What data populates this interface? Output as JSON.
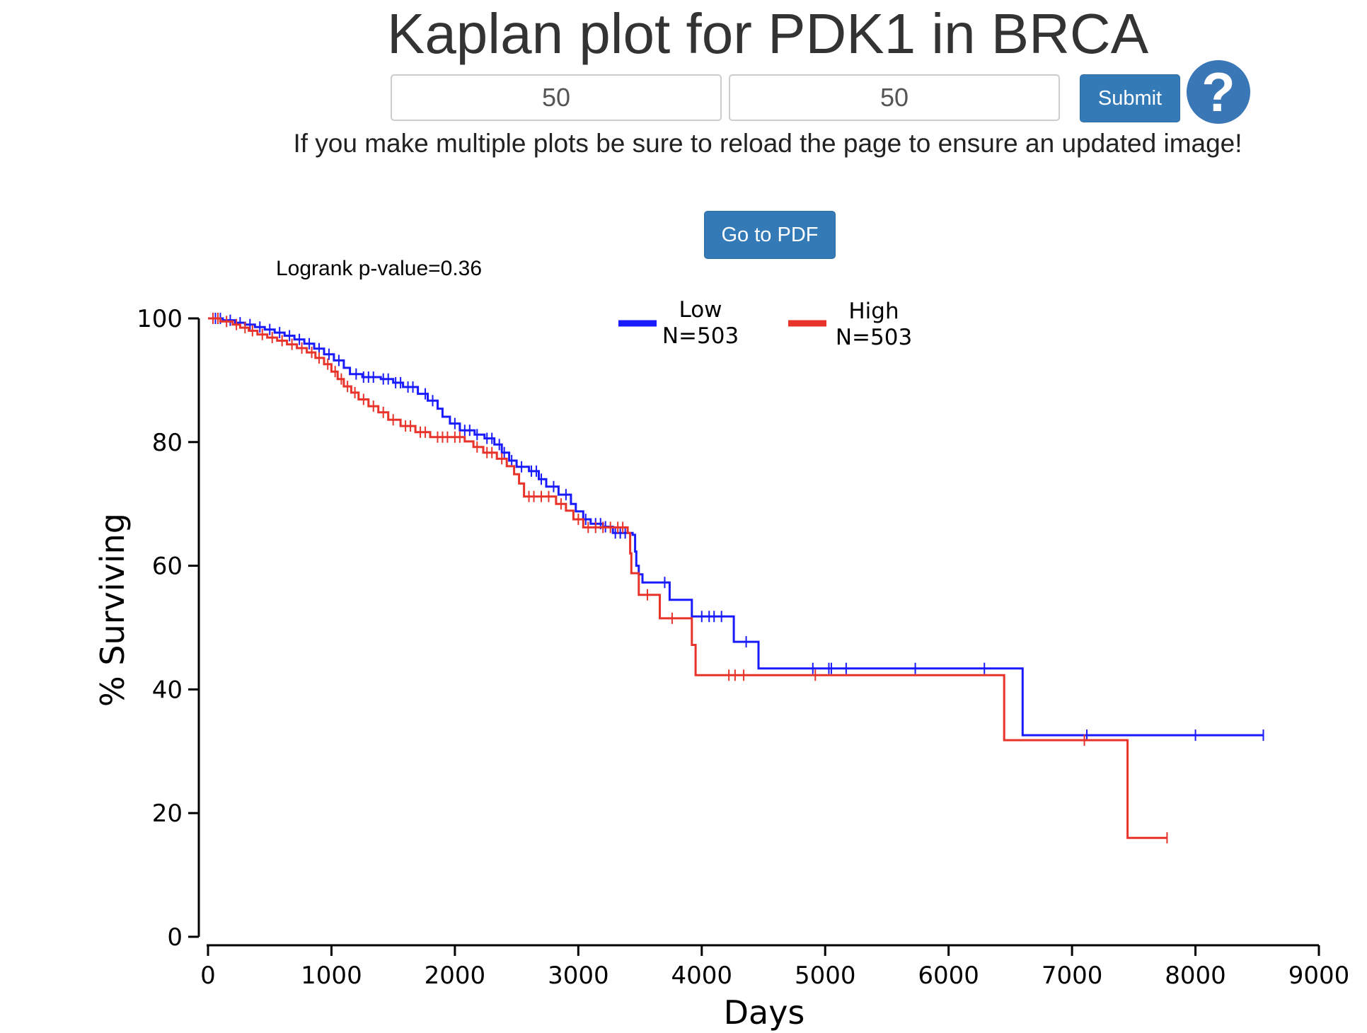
{
  "page": {
    "title": "Kaplan plot for PDK1 in BRCA",
    "inputs": [
      {
        "value": "50"
      },
      {
        "value": "50"
      }
    ],
    "submit_label": "Submit",
    "help_icon": "question-circle-icon",
    "help_glyph": "?",
    "notice": "If you make multiple plots be sure to reload the page to ensure an updated image!",
    "pdf_button_label": "Go to PDF",
    "accent_color": "#337ab7"
  },
  "chart_data": {
    "type": "line",
    "annotation": "Logrank p-value=0.36",
    "xlabel": "Days",
    "ylabel": "% Surviving",
    "xlim": [
      0,
      9000
    ],
    "ylim": [
      0,
      100
    ],
    "xticks": [
      0,
      1000,
      2000,
      3000,
      4000,
      5000,
      6000,
      7000,
      8000,
      9000
    ],
    "yticks": [
      0,
      20,
      40,
      60,
      80,
      100
    ],
    "grid": false,
    "legend_position": "top-center",
    "series": [
      {
        "name": "Low",
        "n_label": "N=503",
        "color": "#1a1aff",
        "steps": [
          [
            0,
            100
          ],
          [
            120,
            99.7
          ],
          [
            220,
            99.3
          ],
          [
            300,
            99
          ],
          [
            380,
            98.6
          ],
          [
            460,
            98.2
          ],
          [
            540,
            97.7
          ],
          [
            620,
            97.2
          ],
          [
            700,
            96.6
          ],
          [
            780,
            95.9
          ],
          [
            860,
            95.1
          ],
          [
            940,
            94.2
          ],
          [
            1020,
            93.2
          ],
          [
            1100,
            92
          ],
          [
            1150,
            91
          ],
          [
            1250,
            90.5
          ],
          [
            1400,
            90.2
          ],
          [
            1500,
            89.6
          ],
          [
            1580,
            88.9
          ],
          [
            1700,
            87.8
          ],
          [
            1780,
            86.7
          ],
          [
            1860,
            85.4
          ],
          [
            1900,
            84.1
          ],
          [
            1960,
            83
          ],
          [
            2040,
            81.9
          ],
          [
            2160,
            81.2
          ],
          [
            2240,
            80.6
          ],
          [
            2320,
            79.6
          ],
          [
            2380,
            78.3
          ],
          [
            2440,
            77
          ],
          [
            2500,
            76
          ],
          [
            2600,
            75.3
          ],
          [
            2680,
            74
          ],
          [
            2740,
            72.8
          ],
          [
            2840,
            71.5
          ],
          [
            2940,
            70
          ],
          [
            2980,
            68.8
          ],
          [
            3040,
            67.5
          ],
          [
            3100,
            66.8
          ],
          [
            3200,
            66.3
          ],
          [
            3280,
            65.3
          ],
          [
            3440,
            65
          ],
          [
            3460,
            62.3
          ],
          [
            3470,
            60
          ],
          [
            3490,
            58.6
          ],
          [
            3520,
            57.3
          ],
          [
            3740,
            54.5
          ],
          [
            3920,
            51.8
          ],
          [
            4260,
            47.7
          ],
          [
            4460,
            43.4
          ],
          [
            6600,
            32.6
          ],
          [
            8550,
            32.6
          ]
        ],
        "censor_marks": [
          [
            60,
            100
          ],
          [
            100,
            100
          ],
          [
            180,
            99.7
          ],
          [
            260,
            99.3
          ],
          [
            340,
            99
          ],
          [
            420,
            98.6
          ],
          [
            500,
            98.2
          ],
          [
            580,
            97.7
          ],
          [
            660,
            97.2
          ],
          [
            740,
            96.6
          ],
          [
            820,
            95.9
          ],
          [
            900,
            95.1
          ],
          [
            980,
            94.2
          ],
          [
            1060,
            93.2
          ],
          [
            1200,
            91
          ],
          [
            1260,
            90.5
          ],
          [
            1300,
            90.5
          ],
          [
            1340,
            90.5
          ],
          [
            1420,
            90.2
          ],
          [
            1460,
            90.2
          ],
          [
            1520,
            89.6
          ],
          [
            1560,
            89.6
          ],
          [
            1620,
            88.9
          ],
          [
            1660,
            88.9
          ],
          [
            1760,
            87.8
          ],
          [
            1820,
            86.7
          ],
          [
            2000,
            83
          ],
          [
            2080,
            81.9
          ],
          [
            2120,
            81.9
          ],
          [
            2180,
            81.2
          ],
          [
            2260,
            80.6
          ],
          [
            2300,
            80.6
          ],
          [
            2360,
            79.6
          ],
          [
            2400,
            78.3
          ],
          [
            2460,
            77
          ],
          [
            2540,
            76
          ],
          [
            2620,
            75.3
          ],
          [
            2660,
            75.3
          ],
          [
            2700,
            74
          ],
          [
            2800,
            72.8
          ],
          [
            2900,
            71.5
          ],
          [
            3060,
            67.5
          ],
          [
            3140,
            66.8
          ],
          [
            3180,
            66.8
          ],
          [
            3220,
            66.3
          ],
          [
            3300,
            65.3
          ],
          [
            3340,
            65.3
          ],
          [
            3380,
            65.3
          ],
          [
            3700,
            57.3
          ],
          [
            4000,
            51.8
          ],
          [
            4060,
            51.8
          ],
          [
            4100,
            51.8
          ],
          [
            4160,
            51.8
          ],
          [
            4360,
            47.7
          ],
          [
            4900,
            43.4
          ],
          [
            5030,
            43.4
          ],
          [
            5050,
            43.4
          ],
          [
            5170,
            43.4
          ],
          [
            5730,
            43.4
          ],
          [
            6290,
            43.4
          ],
          [
            7120,
            32.6
          ],
          [
            8000,
            32.6
          ],
          [
            8550,
            32.6
          ]
        ]
      },
      {
        "name": "High",
        "n_label": "N=503",
        "color": "#e8332a",
        "steps": [
          [
            0,
            100
          ],
          [
            100,
            99.5
          ],
          [
            200,
            99
          ],
          [
            260,
            98.5
          ],
          [
            330,
            98
          ],
          [
            400,
            97.4
          ],
          [
            480,
            96.9
          ],
          [
            560,
            96.4
          ],
          [
            640,
            95.8
          ],
          [
            720,
            95.2
          ],
          [
            800,
            94.5
          ],
          [
            870,
            93.6
          ],
          [
            940,
            92.6
          ],
          [
            1000,
            91.4
          ],
          [
            1050,
            90.2
          ],
          [
            1100,
            89
          ],
          [
            1160,
            88
          ],
          [
            1220,
            86.9
          ],
          [
            1300,
            85.8
          ],
          [
            1380,
            84.8
          ],
          [
            1460,
            83.6
          ],
          [
            1560,
            82.6
          ],
          [
            1680,
            81.6
          ],
          [
            1800,
            80.8
          ],
          [
            2080,
            80.1
          ],
          [
            2150,
            79.2
          ],
          [
            2230,
            78.3
          ],
          [
            2340,
            77.3
          ],
          [
            2420,
            76.1
          ],
          [
            2480,
            74.8
          ],
          [
            2520,
            73.3
          ],
          [
            2560,
            71.2
          ],
          [
            2820,
            70
          ],
          [
            2900,
            68.9
          ],
          [
            2960,
            67.5
          ],
          [
            3040,
            66.2
          ],
          [
            3400,
            65.3
          ],
          [
            3420,
            62
          ],
          [
            3430,
            58.8
          ],
          [
            3490,
            55.3
          ],
          [
            3660,
            51.5
          ],
          [
            3920,
            47.2
          ],
          [
            3950,
            42.3
          ],
          [
            6450,
            31.8
          ],
          [
            7450,
            16
          ],
          [
            7770,
            16
          ]
        ],
        "censor_marks": [
          [
            40,
            100
          ],
          [
            80,
            100
          ],
          [
            150,
            99.5
          ],
          [
            230,
            99
          ],
          [
            300,
            98.5
          ],
          [
            360,
            98
          ],
          [
            440,
            97.4
          ],
          [
            520,
            96.9
          ],
          [
            600,
            96.4
          ],
          [
            680,
            95.8
          ],
          [
            760,
            95.2
          ],
          [
            840,
            94.5
          ],
          [
            900,
            93.6
          ],
          [
            970,
            92.6
          ],
          [
            1030,
            91.4
          ],
          [
            1080,
            90.2
          ],
          [
            1130,
            89
          ],
          [
            1190,
            88
          ],
          [
            1260,
            86.9
          ],
          [
            1340,
            85.8
          ],
          [
            1420,
            84.8
          ],
          [
            1500,
            83.6
          ],
          [
            1600,
            82.6
          ],
          [
            1640,
            82.6
          ],
          [
            1720,
            81.6
          ],
          [
            1760,
            81.6
          ],
          [
            1860,
            80.8
          ],
          [
            1900,
            80.8
          ],
          [
            1940,
            80.8
          ],
          [
            2000,
            80.8
          ],
          [
            2040,
            80.8
          ],
          [
            2180,
            79.2
          ],
          [
            2260,
            78.3
          ],
          [
            2300,
            78.3
          ],
          [
            2380,
            77.3
          ],
          [
            2600,
            71.2
          ],
          [
            2640,
            71.2
          ],
          [
            2700,
            71.2
          ],
          [
            2760,
            71.2
          ],
          [
            2860,
            70
          ],
          [
            3000,
            67.5
          ],
          [
            3080,
            66.2
          ],
          [
            3140,
            66.2
          ],
          [
            3200,
            66.2
          ],
          [
            3260,
            66.2
          ],
          [
            3320,
            66.2
          ],
          [
            3360,
            66.2
          ],
          [
            3560,
            55.3
          ],
          [
            3760,
            51.5
          ],
          [
            4220,
            42.3
          ],
          [
            4270,
            42.3
          ],
          [
            4340,
            42.3
          ],
          [
            4920,
            42.3
          ],
          [
            7100,
            31.8
          ],
          [
            7770,
            16
          ]
        ]
      }
    ]
  }
}
